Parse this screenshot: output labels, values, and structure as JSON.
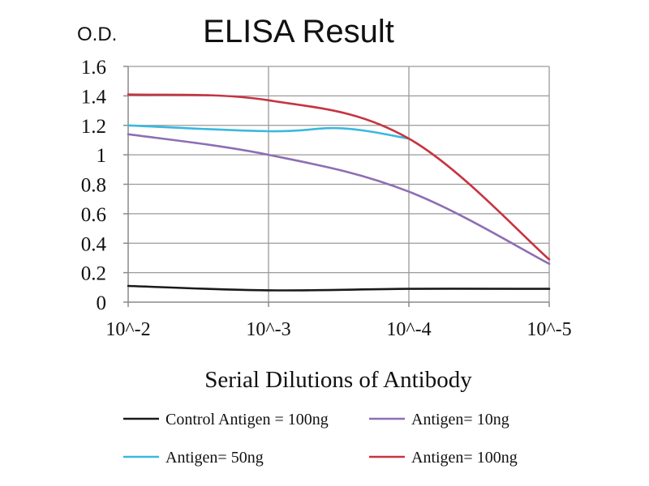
{
  "chart_data": {
    "type": "line",
    "title": "ELISA Result",
    "ylabel": "O.D.",
    "xlabel": "Serial Dilutions of Antibody",
    "x_scale": "log",
    "x": [
      0.01,
      0.001,
      0.0001,
      1e-05
    ],
    "x_tick_labels": [
      "10^-2",
      "10^-3",
      "10^-4",
      "10^-5"
    ],
    "ylim": [
      0,
      1.6
    ],
    "y_ticks": [
      0,
      0.2,
      0.4,
      0.6,
      0.8,
      1,
      1.2,
      1.4,
      1.6
    ],
    "y_tick_labels": [
      "0",
      "0.2",
      "0.4",
      "0.6",
      "0.8",
      "1",
      "1.2",
      "1.4",
      "1.6"
    ],
    "grid": true,
    "legend_position": "bottom",
    "series": [
      {
        "name": "Control Antigen = 100ng",
        "color": "#1a1a1a",
        "x": [
          0.01,
          0.001,
          0.0001,
          1e-05
        ],
        "values": [
          0.11,
          0.08,
          0.09,
          0.09
        ]
      },
      {
        "name": "Antigen= 10ng",
        "color": "#8c6fb3",
        "x": [
          0.01,
          0.001,
          0.0001,
          1e-05
        ],
        "values": [
          1.14,
          1.0,
          0.75,
          0.26
        ]
      },
      {
        "name": "Antigen= 50ng",
        "color": "#3ab8e0",
        "x": [
          0.01,
          0.001,
          0.0003,
          0.0001
        ],
        "values": [
          1.2,
          1.16,
          1.18,
          1.11
        ]
      },
      {
        "name": "Antigen= 100ng",
        "color": "#c63440",
        "x": [
          0.01,
          0.001,
          0.0001,
          1e-05
        ],
        "values": [
          1.41,
          1.37,
          1.11,
          0.29
        ]
      }
    ]
  }
}
